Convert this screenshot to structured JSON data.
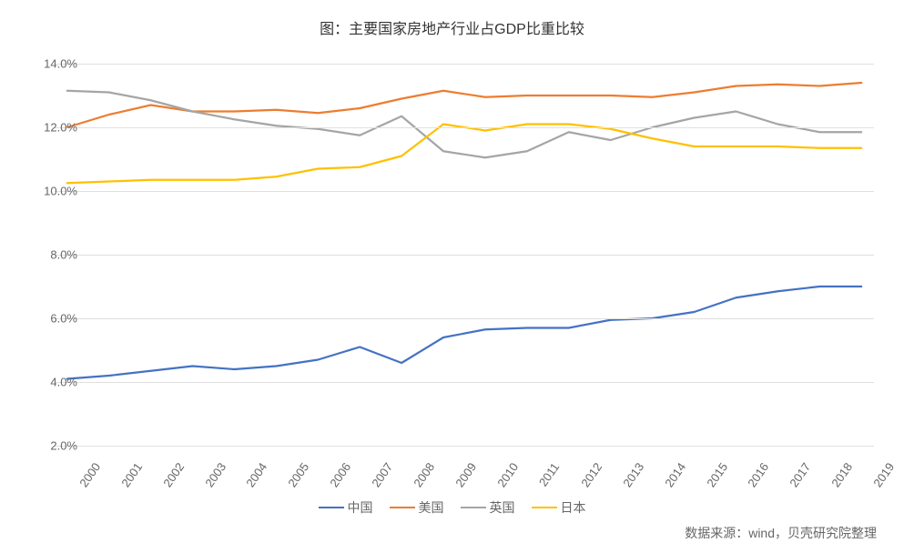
{
  "chart": {
    "type": "line",
    "title": "图：主要国家房地产行业占GDP比重比较",
    "title_fontsize": 16,
    "background_color": "#ffffff",
    "grid_color": "#e0e0e0",
    "text_color": "#666666",
    "line_width": 2.2,
    "x": {
      "categories": [
        "2000",
        "2001",
        "2002",
        "2003",
        "2004",
        "2005",
        "2006",
        "2007",
        "2008",
        "2009",
        "2010",
        "2011",
        "2012",
        "2013",
        "2014",
        "2015",
        "2016",
        "2017",
        "2018",
        "2019"
      ],
      "label_fontsize": 13,
      "label_rotation": -55
    },
    "y": {
      "min": 2.0,
      "max": 14.0,
      "tick_step": 2.0,
      "format": "percent_one_decimal",
      "label_fontsize": 13
    },
    "series": [
      {
        "name": "中国",
        "color": "#4472c4",
        "values": [
          4.1,
          4.2,
          4.35,
          4.5,
          4.4,
          4.5,
          4.7,
          5.1,
          4.6,
          5.4,
          5.65,
          5.7,
          5.7,
          5.95,
          6.0,
          6.2,
          6.65,
          6.85,
          7.0,
          7.0
        ]
      },
      {
        "name": "美国",
        "color": "#ed7d31",
        "values": [
          12.0,
          12.4,
          12.7,
          12.5,
          12.5,
          12.55,
          12.45,
          12.6,
          12.9,
          13.15,
          12.95,
          13.0,
          13.0,
          13.0,
          12.95,
          13.1,
          13.3,
          13.35,
          13.3,
          13.4
        ]
      },
      {
        "name": "英国",
        "color": "#a5a5a5",
        "values": [
          13.15,
          13.1,
          12.85,
          12.5,
          12.25,
          12.05,
          11.95,
          11.75,
          12.35,
          11.25,
          11.05,
          11.25,
          11.85,
          11.6,
          12.0,
          12.3,
          12.5,
          12.1,
          11.85,
          11.85
        ]
      },
      {
        "name": "日本",
        "color": "#ffc000",
        "values": [
          10.25,
          10.3,
          10.35,
          10.35,
          10.35,
          10.45,
          10.7,
          10.75,
          11.1,
          12.1,
          11.9,
          12.1,
          12.1,
          11.95,
          11.65,
          11.4,
          11.4,
          11.4,
          11.35,
          11.35
        ]
      }
    ],
    "legend": {
      "position": "bottom",
      "fontsize": 14
    },
    "source": "数据来源：wind，贝壳研究院整理",
    "source_fontsize": 14
  }
}
